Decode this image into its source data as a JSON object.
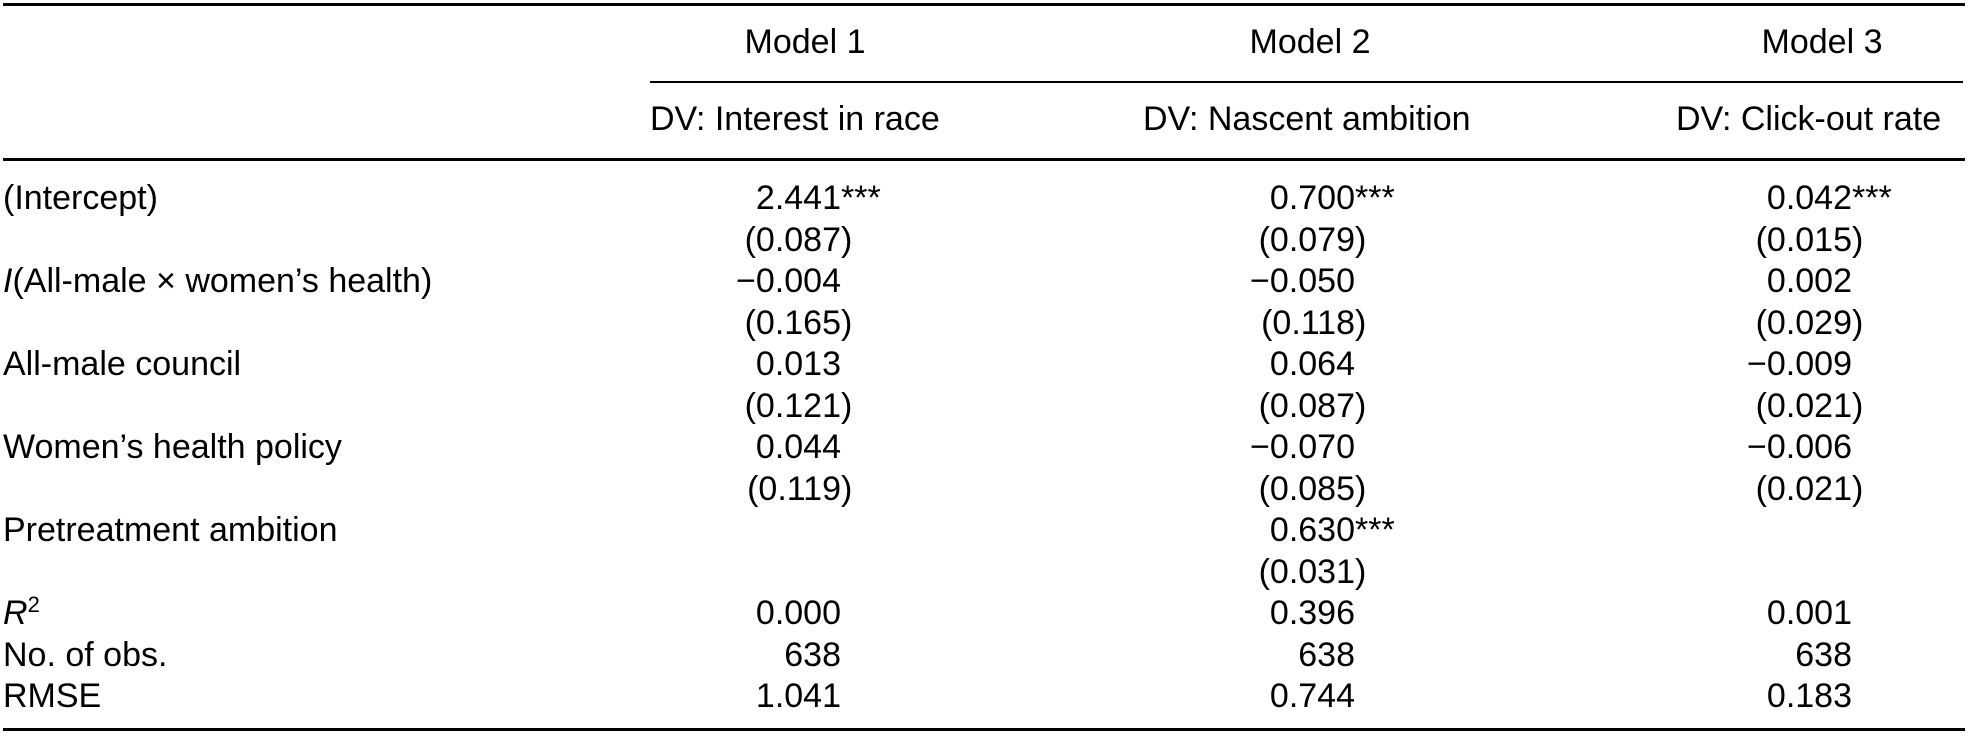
{
  "page": {
    "background": "#ffffff",
    "text_color": "#000000"
  },
  "table": {
    "kind": "regression-results",
    "models": [
      {
        "name": "Model 1",
        "dv": "DV: Interest in race"
      },
      {
        "name": "Model 2",
        "dv": "DV: Nascent ambition"
      },
      {
        "name": "Model 3",
        "dv": "DV: Click-out rate"
      }
    ],
    "rows": [
      {
        "label": [
          {
            "t": "(Intercept)"
          }
        ],
        "cells": [
          "2.441***",
          "0.700***",
          "0.042***"
        ]
      },
      {
        "label": [],
        "cells": [
          "(0.087)",
          "(0.079)",
          "(0.015)"
        ]
      },
      {
        "label": [
          {
            "t": "I",
            "i": true
          },
          {
            "t": "(All-male × women’s health)"
          }
        ],
        "cells": [
          "−0.004",
          "−0.050",
          "0.002"
        ]
      },
      {
        "label": [],
        "cells": [
          "(0.165)",
          "(0.118)",
          "(0.029)"
        ]
      },
      {
        "label": [
          {
            "t": "All-male council"
          }
        ],
        "cells": [
          "0.013",
          "0.064",
          "−0.009"
        ]
      },
      {
        "label": [],
        "cells": [
          "(0.121)",
          "(0.087)",
          "(0.021)"
        ]
      },
      {
        "label": [
          {
            "t": "Women’s health policy"
          }
        ],
        "cells": [
          "0.044",
          "−0.070",
          "−0.006"
        ]
      },
      {
        "label": [],
        "cells": [
          "(0.119)",
          "(0.085)",
          "(0.021)"
        ]
      },
      {
        "label": [
          {
            "t": "Pretreatment ambition"
          }
        ],
        "cells": [
          "",
          "0.630***",
          ""
        ]
      },
      {
        "label": [],
        "cells": [
          "",
          "(0.031)",
          ""
        ]
      },
      {
        "label": [
          {
            "t": "R",
            "i": true
          },
          {
            "t": "2",
            "sup": true
          }
        ],
        "cells": [
          "0.000",
          "0.396",
          "0.001"
        ]
      },
      {
        "label": [
          {
            "t": "No. of obs."
          }
        ],
        "cells": [
          "638",
          "638",
          "638"
        ]
      },
      {
        "label": [
          {
            "t": "RMSE"
          }
        ],
        "cells": [
          "1.041",
          "0.744",
          "0.183"
        ]
      }
    ]
  }
}
